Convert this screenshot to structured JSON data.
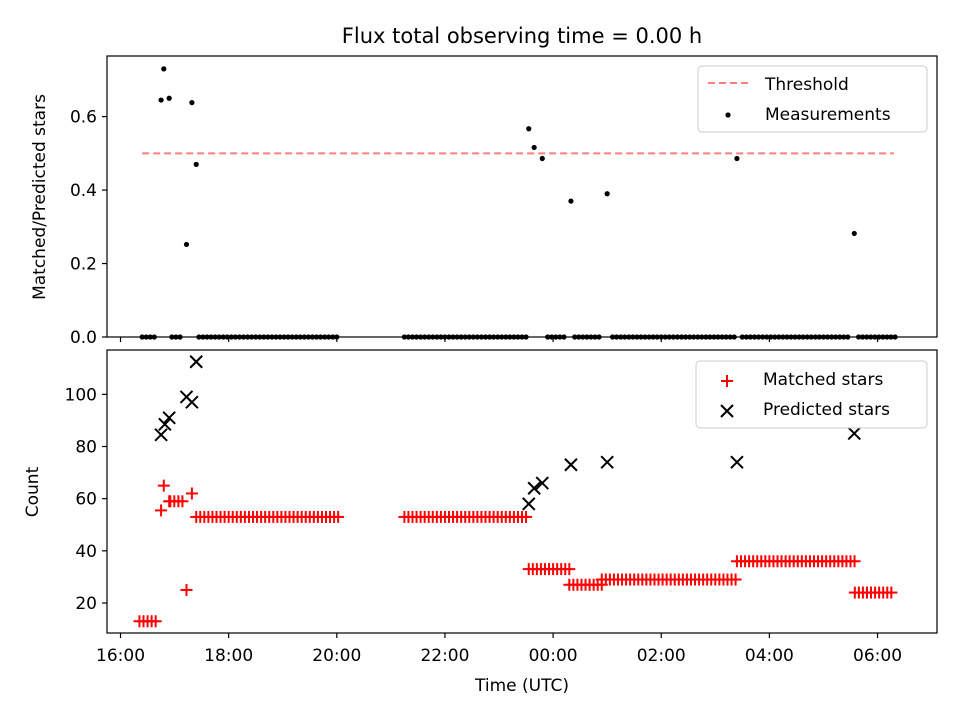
{
  "chart_data": [
    {
      "type": "scatter",
      "title": "Flux total observing time = 0.00 h",
      "xlabel": "",
      "ylabel": "Matched/Predicted stars",
      "xlim": [
        15.75,
        31.1
      ],
      "ylim": [
        0.0,
        0.765
      ],
      "yticks": [
        0.0,
        0.2,
        0.4,
        0.6
      ],
      "ytick_labels": [
        "0.0",
        "0.2",
        "0.4",
        "0.6"
      ],
      "legend_position": "upper right",
      "legend": [
        "Threshold",
        "Measurements"
      ],
      "threshold": {
        "name": "Threshold",
        "value": 0.5,
        "x_range": [
          16.4,
          30.3
        ],
        "color": "#ff7f7f",
        "style": "dashed"
      },
      "measurements": {
        "name": "Measurements",
        "color": "#000000",
        "points": [
          [
            16.75,
            0.645
          ],
          [
            16.8,
            0.73
          ],
          [
            16.9,
            0.65
          ],
          [
            17.22,
            0.252
          ],
          [
            17.32,
            0.638
          ],
          [
            17.4,
            0.47
          ],
          [
            23.55,
            0.567
          ],
          [
            23.65,
            0.516
          ],
          [
            23.8,
            0.486
          ],
          [
            24.33,
            0.37
          ],
          [
            25.0,
            0.39
          ],
          [
            27.4,
            0.486
          ],
          [
            29.57,
            0.282
          ]
        ],
        "zero_ranges": [
          [
            16.4,
            16.65
          ],
          [
            16.95,
            17.15
          ],
          [
            17.45,
            20.0
          ],
          [
            21.25,
            23.5
          ],
          [
            23.9,
            24.25
          ],
          [
            24.4,
            24.85
          ],
          [
            25.1,
            27.35
          ],
          [
            27.5,
            29.5
          ],
          [
            29.65,
            30.35
          ]
        ]
      }
    },
    {
      "type": "scatter",
      "title": "",
      "xlabel": "Time (UTC)",
      "ylabel": "Count",
      "xlim": [
        15.75,
        31.1
      ],
      "ylim": [
        8.5,
        117
      ],
      "yticks": [
        20,
        40,
        60,
        80,
        100
      ],
      "ytick_labels": [
        "20",
        "40",
        "60",
        "80",
        "100"
      ],
      "xticks": [
        16,
        18,
        20,
        22,
        24,
        26,
        28,
        30
      ],
      "xtick_labels": [
        "16:00",
        "18:00",
        "20:00",
        "22:00",
        "00:00",
        "02:00",
        "04:00",
        "06:00"
      ],
      "legend_position": "upper right",
      "legend": [
        "Matched stars",
        "Predicted stars"
      ],
      "matched": {
        "name": "Matched stars",
        "color": "#ff0000",
        "marker": "+",
        "points": [
          [
            16.75,
            55.5
          ],
          [
            16.8,
            65
          ],
          [
            16.9,
            59
          ],
          [
            17.22,
            25
          ],
          [
            17.32,
            62
          ]
        ],
        "segments": [
          {
            "from": 16.35,
            "to": 16.68,
            "y": 13
          },
          {
            "from": 16.92,
            "to": 17.18,
            "y": 59
          },
          {
            "from": 17.4,
            "to": 20.05,
            "y": 53
          },
          {
            "from": 21.25,
            "to": 23.55,
            "y": 53
          },
          {
            "from": 23.55,
            "to": 24.3,
            "y": 33
          },
          {
            "from": 24.3,
            "to": 24.9,
            "y": 27
          },
          {
            "from": 24.9,
            "to": 27.4,
            "y": 29
          },
          {
            "from": 27.4,
            "to": 29.58,
            "y": 36
          },
          {
            "from": 29.58,
            "to": 30.3,
            "y": 24
          }
        ]
      },
      "predicted": {
        "name": "Predicted stars",
        "color": "#000000",
        "marker": "x",
        "points": [
          [
            16.75,
            84.5
          ],
          [
            16.82,
            88.5
          ],
          [
            16.9,
            91
          ],
          [
            17.22,
            99
          ],
          [
            17.32,
            97
          ],
          [
            17.4,
            112.5
          ],
          [
            23.55,
            58
          ],
          [
            23.65,
            64
          ],
          [
            23.8,
            66
          ],
          [
            24.33,
            73
          ],
          [
            25.0,
            74
          ],
          [
            27.4,
            74
          ],
          [
            29.57,
            85
          ]
        ]
      }
    }
  ]
}
